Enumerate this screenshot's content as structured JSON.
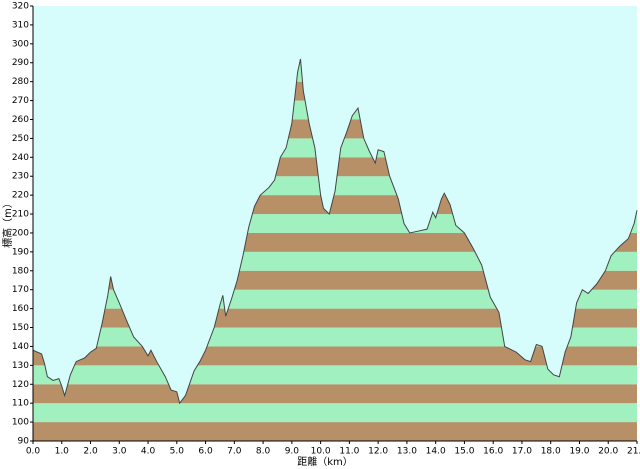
{
  "chart_data": {
    "type": "area",
    "xlabel": "距離（km）",
    "ylabel": "標高（m）",
    "x": [
      0.0,
      0.3,
      0.4,
      0.5,
      0.7,
      0.9,
      1.0,
      1.1,
      1.3,
      1.5,
      1.8,
      2.0,
      2.2,
      2.4,
      2.6,
      2.7,
      2.8,
      3.0,
      3.3,
      3.5,
      3.8,
      4.0,
      4.1,
      4.3,
      4.6,
      4.8,
      5.0,
      5.1,
      5.3,
      5.6,
      5.8,
      6.0,
      6.3,
      6.5,
      6.6,
      6.7,
      6.9,
      7.1,
      7.3,
      7.5,
      7.7,
      7.9,
      8.2,
      8.4,
      8.6,
      8.8,
      9.0,
      9.2,
      9.3,
      9.4,
      9.6,
      9.8,
      10.0,
      10.1,
      10.3,
      10.5,
      10.7,
      10.9,
      11.1,
      11.3,
      11.5,
      11.7,
      11.9,
      12.0,
      12.2,
      12.4,
      12.7,
      12.9,
      13.1,
      13.4,
      13.7,
      13.9,
      14.0,
      14.2,
      14.3,
      14.5,
      14.7,
      15.0,
      15.3,
      15.6,
      15.9,
      16.2,
      16.4,
      16.8,
      17.1,
      17.3,
      17.5,
      17.7,
      17.9,
      18.1,
      18.3,
      18.5,
      18.7,
      18.9,
      19.1,
      19.3,
      19.6,
      19.9,
      20.1,
      20.4,
      20.7,
      20.9,
      21.0
    ],
    "values": [
      138,
      136,
      131,
      124,
      122,
      123,
      119,
      114,
      125,
      132,
      134,
      137,
      139,
      152,
      167,
      177,
      170,
      163,
      152,
      145,
      140,
      135,
      138,
      132,
      124,
      117,
      116,
      110,
      114,
      127,
      132,
      138,
      150,
      162,
      167,
      156,
      165,
      175,
      188,
      203,
      214,
      220,
      224,
      228,
      240,
      245,
      258,
      285,
      292,
      275,
      258,
      245,
      220,
      213,
      210,
      222,
      245,
      253,
      262,
      266,
      250,
      243,
      237,
      244,
      243,
      230,
      218,
      205,
      200,
      201,
      202,
      211,
      208,
      218,
      221,
      215,
      204,
      200,
      192,
      183,
      166,
      158,
      140,
      137,
      133,
      132,
      141,
      140,
      128,
      125,
      124,
      137,
      145,
      163,
      170,
      168,
      173,
      180,
      188,
      193,
      197,
      205,
      212
    ],
    "color": "#444444",
    "band_colors": [
      "#b89068",
      "#a0f0c0"
    ],
    "background": "#d6fcfc",
    "xlim": [
      0,
      21
    ],
    "ylim": [
      90,
      320
    ],
    "xticks": [
      {
        "value": 0,
        "label": "0.0"
      },
      {
        "value": 1,
        "label": "1.0"
      },
      {
        "value": 2,
        "label": "2.0"
      },
      {
        "value": 3,
        "label": "3.0"
      },
      {
        "value": 4,
        "label": "4.0"
      },
      {
        "value": 5,
        "label": "5.0"
      },
      {
        "value": 6,
        "label": "6.0"
      },
      {
        "value": 7,
        "label": "7.0"
      },
      {
        "value": 8,
        "label": "8.0"
      },
      {
        "value": 9,
        "label": "9.0"
      },
      {
        "value": 10,
        "label": "10.0"
      },
      {
        "value": 11,
        "label": "11.0"
      },
      {
        "value": 12,
        "label": "12.0"
      },
      {
        "value": 13,
        "label": "13.0"
      },
      {
        "value": 14,
        "label": "14.0"
      },
      {
        "value": 15,
        "label": "15.0"
      },
      {
        "value": 16,
        "label": "16.0"
      },
      {
        "value": 17,
        "label": "17.0"
      },
      {
        "value": 18,
        "label": "18.0"
      },
      {
        "value": 19,
        "label": "19.0"
      },
      {
        "value": 20,
        "label": "20.0"
      },
      {
        "value": 21,
        "label": "21.0"
      }
    ],
    "yticks": [
      90,
      100,
      110,
      120,
      130,
      140,
      150,
      160,
      170,
      180,
      190,
      200,
      210,
      220,
      230,
      240,
      250,
      260,
      270,
      280,
      290,
      300,
      310,
      320
    ]
  }
}
